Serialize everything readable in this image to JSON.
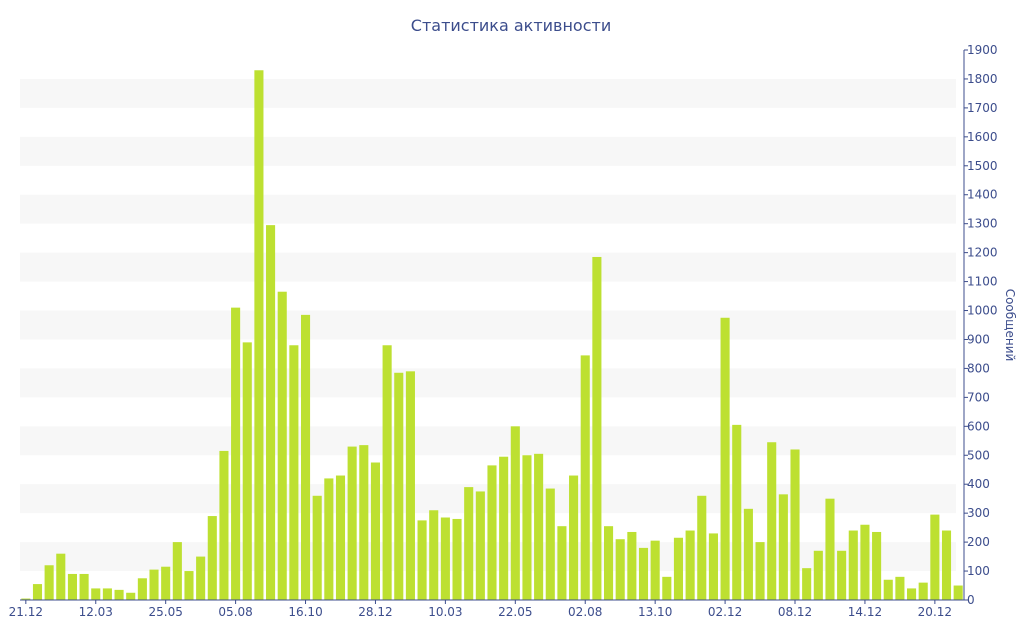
{
  "chart_data": {
    "type": "bar",
    "title": "Статистика активности",
    "xlabel": "",
    "ylabel": "Сообщений",
    "ylim": [
      0,
      1900
    ],
    "y_ticks": [
      0,
      100,
      200,
      300,
      400,
      500,
      600,
      700,
      800,
      900,
      1000,
      1100,
      1200,
      1300,
      1400,
      1500,
      1600,
      1700,
      1800,
      1900
    ],
    "y_axis_side": "right",
    "grid": "alternating horizontal bands",
    "bar_color": "#bde031",
    "band_color": "#f7f7f7",
    "text_color": "#3c4d8c",
    "x_tick_labels": [
      {
        "index": 0,
        "label": "21.12"
      },
      {
        "index": 6,
        "label": "12.03"
      },
      {
        "index": 12,
        "label": "25.05"
      },
      {
        "index": 18,
        "label": "05.08"
      },
      {
        "index": 24,
        "label": "16.10"
      },
      {
        "index": 30,
        "label": "28.12"
      },
      {
        "index": 36,
        "label": "10.03"
      },
      {
        "index": 42,
        "label": "22.05"
      },
      {
        "index": 48,
        "label": "02.08"
      },
      {
        "index": 54,
        "label": "13.10"
      },
      {
        "index": 60,
        "label": "02.12"
      },
      {
        "index": 66,
        "label": "08.12"
      },
      {
        "index": 72,
        "label": "14.12"
      },
      {
        "index": 78,
        "label": "20.12"
      }
    ],
    "values": [
      5,
      55,
      120,
      160,
      90,
      90,
      40,
      40,
      35,
      25,
      75,
      105,
      115,
      200,
      100,
      150,
      290,
      515,
      1010,
      890,
      1830,
      1295,
      1065,
      880,
      985,
      360,
      420,
      430,
      530,
      535,
      475,
      880,
      785,
      790,
      275,
      310,
      285,
      280,
      390,
      375,
      465,
      495,
      600,
      500,
      505,
      385,
      255,
      430,
      845,
      1185,
      255,
      210,
      235,
      180,
      205,
      80,
      215,
      240,
      360,
      230,
      975,
      605,
      315,
      200,
      545,
      365,
      520,
      110,
      170,
      350,
      170,
      240,
      260,
      235,
      70,
      80,
      40,
      60,
      295,
      240,
      50
    ]
  }
}
